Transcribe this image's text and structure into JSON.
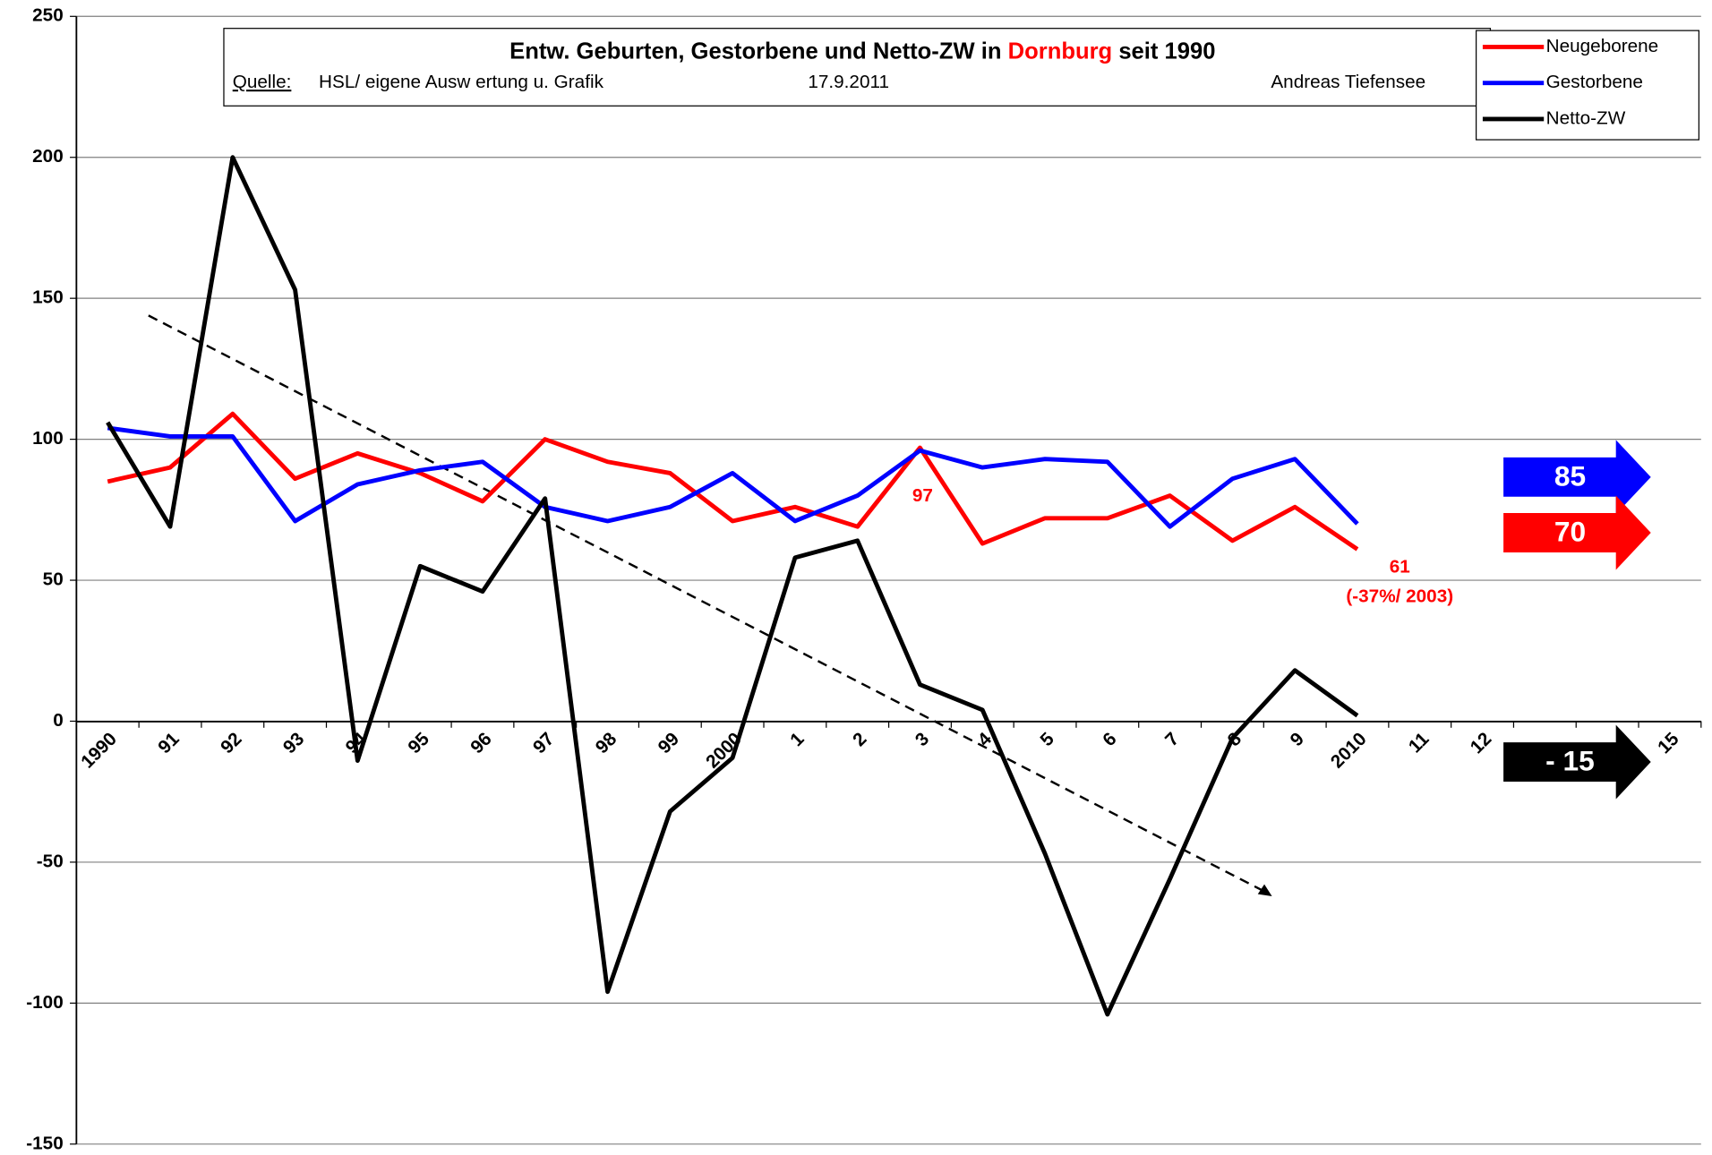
{
  "chart_data": {
    "type": "line",
    "title": {
      "prefix": "Entw. Geburten, Gestorbene und Netto-ZW in",
      "place": "Dornburg",
      "suffix": "seit 1990"
    },
    "subtitle": {
      "source_label": "Quelle:",
      "source": "HSL/ eigene Ausw ertung u. Grafik",
      "date": "17.9.2011",
      "author": "Andreas Tiefensee"
    },
    "categories": [
      "1990",
      "91",
      "92",
      "93",
      "94",
      "95",
      "96",
      "97",
      "98",
      "99",
      "2000",
      "1",
      "2",
      "3",
      "4",
      "5",
      "6",
      "7",
      "8",
      "9",
      "2010",
      "11",
      "12",
      null,
      null,
      "15"
    ],
    "series": [
      {
        "name": "Neugeborene",
        "color": "#ff0000",
        "values": [
          85,
          90,
          109,
          86,
          95,
          88,
          78,
          100,
          92,
          88,
          71,
          76,
          69,
          97,
          63,
          72,
          72,
          80,
          64,
          76,
          61,
          null,
          null,
          null,
          null,
          null
        ]
      },
      {
        "name": "Gestorbene",
        "color": "#0000ff",
        "values": [
          104,
          101,
          101,
          71,
          84,
          89,
          92,
          76,
          71,
          76,
          88,
          71,
          80,
          96,
          90,
          93,
          92,
          69,
          86,
          93,
          70,
          null,
          null,
          null,
          null,
          null
        ]
      },
      {
        "name": "Netto-ZW",
        "color": "#000000",
        "values": [
          106,
          69,
          200,
          153,
          -14,
          55,
          46,
          79,
          -96,
          -32,
          -13,
          58,
          64,
          13,
          4,
          -47,
          -104,
          -56,
          -6,
          18,
          2,
          null,
          null,
          null,
          null,
          null
        ]
      }
    ],
    "ylim": [
      -150,
      250
    ],
    "yticks": [
      -150,
      -100,
      -50,
      0,
      50,
      100,
      150,
      200,
      250
    ],
    "grid": true,
    "legend": "top-right",
    "annotations": {
      "peak": "97",
      "last": "61",
      "last_change": "(-37%/ 2003)",
      "arrow_deaths": "85",
      "arrow_births": "70",
      "arrow_net": "- 15"
    }
  }
}
